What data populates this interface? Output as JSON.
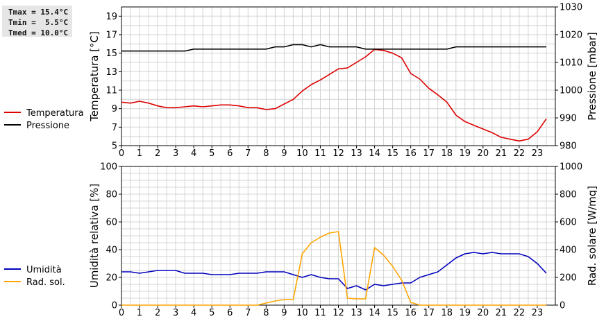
{
  "stats": {
    "tmax": "Tmax = 15.4°C",
    "tmin": "Tmin =  5.5°C",
    "tmed": "Tmed = 10.0°C"
  },
  "chart_data": [
    {
      "type": "line",
      "x_ticks": [
        "0",
        "1",
        "2",
        "3",
        "4",
        "5",
        "6",
        "7",
        "8",
        "9",
        "10",
        "11",
        "12",
        "13",
        "14",
        "15",
        "16",
        "17",
        "18",
        "19",
        "20",
        "21",
        "22",
        "23"
      ],
      "xlim": [
        0,
        24
      ],
      "ylabel_left": "Temperatura [°C]",
      "ylim_left": [
        5,
        20
      ],
      "yticks_left": [
        "5",
        "7",
        "9",
        "11",
        "13",
        "15",
        "17",
        "19"
      ],
      "ylabel_right": "Pressione [mbar]",
      "ylim_right": [
        980,
        1030
      ],
      "yticks_right": [
        "980",
        "990",
        "1000",
        "1010",
        "1020",
        "1030"
      ],
      "grid": true,
      "legend_position": "left",
      "series": [
        {
          "name": "Temperatura",
          "axis": "left",
          "color": "#dd0000",
          "x": [
            0,
            0.5,
            1,
            1.5,
            2,
            2.5,
            3,
            3.5,
            4,
            4.5,
            5,
            5.5,
            6,
            6.5,
            7,
            7.5,
            8,
            8.5,
            9,
            9.5,
            10,
            10.5,
            11,
            11.5,
            12,
            12.5,
            13,
            13.5,
            14,
            14.5,
            15,
            15.5,
            16,
            16.5,
            17,
            17.5,
            18,
            18.5,
            19,
            19.5,
            20,
            20.5,
            21,
            21.5,
            22,
            22.5,
            23,
            23.5
          ],
          "y": [
            9.7,
            9.6,
            9.8,
            9.6,
            9.3,
            9.1,
            9.1,
            9.2,
            9.3,
            9.2,
            9.3,
            9.4,
            9.4,
            9.3,
            9.1,
            9.1,
            8.9,
            9.0,
            9.5,
            10.0,
            10.9,
            11.6,
            12.1,
            12.7,
            13.3,
            13.4,
            14.0,
            14.6,
            15.4,
            15.3,
            15.0,
            14.5,
            12.8,
            12.2,
            11.2,
            10.5,
            9.7,
            8.3,
            7.6,
            7.2,
            6.8,
            6.4,
            5.9,
            5.7,
            5.5,
            5.7,
            6.5,
            7.9
          ]
        },
        {
          "name": "Pressione",
          "axis": "right",
          "color": "#000000",
          "x": [
            0,
            0.5,
            1,
            1.5,
            2,
            2.5,
            3,
            3.5,
            4,
            4.5,
            5,
            5.5,
            6,
            6.5,
            7,
            7.5,
            8,
            8.5,
            9,
            9.5,
            10,
            10.5,
            11,
            11.5,
            12,
            12.5,
            13,
            13.5,
            14,
            14.5,
            15,
            15.5,
            16,
            16.5,
            17,
            17.5,
            18,
            18.5,
            19,
            19.5,
            20,
            20.5,
            21,
            21.5,
            22,
            22.5,
            23,
            23.5
          ],
          "y": [
            1014.1,
            1014.1,
            1014.1,
            1014.1,
            1014.1,
            1014.1,
            1014.1,
            1014.1,
            1014.8,
            1014.8,
            1014.8,
            1014.8,
            1014.8,
            1014.8,
            1014.8,
            1014.8,
            1014.8,
            1015.6,
            1015.6,
            1016.4,
            1016.4,
            1015.6,
            1016.4,
            1015.6,
            1015.6,
            1015.6,
            1015.6,
            1014.8,
            1014.8,
            1014.8,
            1014.8,
            1014.8,
            1014.8,
            1014.8,
            1014.8,
            1014.8,
            1014.8,
            1015.6,
            1015.6,
            1015.6,
            1015.6,
            1015.6,
            1015.6,
            1015.6,
            1015.6,
            1015.6,
            1015.6,
            1015.6
          ]
        }
      ]
    },
    {
      "type": "line",
      "x_ticks": [
        "0",
        "1",
        "2",
        "3",
        "4",
        "5",
        "6",
        "7",
        "8",
        "9",
        "10",
        "11",
        "12",
        "13",
        "14",
        "15",
        "16",
        "17",
        "18",
        "19",
        "20",
        "21",
        "22",
        "23"
      ],
      "xlim": [
        0,
        24
      ],
      "ylabel_left": "Umidità relativa [%]",
      "ylim_left": [
        0,
        100
      ],
      "yticks_left": [
        "0",
        "20",
        "40",
        "60",
        "80",
        "100"
      ],
      "ylabel_right": "Rad. solare [W/mq]",
      "ylim_right": [
        0,
        1000
      ],
      "yticks_right": [
        "0",
        "200",
        "400",
        "600",
        "800",
        "1000"
      ],
      "grid": true,
      "legend_position": "left",
      "series": [
        {
          "name": "Umidità",
          "axis": "left",
          "color": "#0000bb",
          "x": [
            0,
            0.5,
            1,
            1.5,
            2,
            2.5,
            3,
            3.5,
            4,
            4.5,
            5,
            5.5,
            6,
            6.5,
            7,
            7.5,
            8,
            8.5,
            9,
            9.5,
            10,
            10.5,
            11,
            11.5,
            12,
            12.5,
            13,
            13.5,
            14,
            14.5,
            15,
            15.5,
            16,
            16.5,
            17,
            17.5,
            18,
            18.5,
            19,
            19.5,
            20,
            20.5,
            21,
            21.5,
            22,
            22.5,
            23,
            23.5
          ],
          "y": [
            24,
            24,
            23,
            24,
            25,
            25,
            25,
            23,
            23,
            23,
            22,
            22,
            22,
            23,
            23,
            23,
            24,
            24,
            24,
            22,
            20,
            22,
            20,
            19,
            19,
            12,
            14,
            11,
            15,
            14,
            15,
            16,
            16,
            20,
            22,
            24,
            29,
            34,
            37,
            38,
            37,
            38,
            37,
            37,
            37,
            35,
            30,
            23
          ]
        },
        {
          "name": "Rad. sol.",
          "axis": "right",
          "color": "#ffa500",
          "x": [
            0,
            0.5,
            1,
            1.5,
            2,
            2.5,
            3,
            3.5,
            4,
            4.5,
            5,
            5.5,
            6,
            6.5,
            7,
            7.5,
            8,
            8.5,
            9,
            9.5,
            10,
            10.5,
            11,
            11.5,
            12,
            12.5,
            13,
            13.5,
            14,
            14.5,
            15,
            15.5,
            16,
            16.5,
            17,
            17.5,
            18,
            18.5,
            19,
            19.5,
            20,
            20.5,
            21,
            21.5,
            22,
            22.5,
            23,
            23.5
          ],
          "y": [
            0,
            0,
            0,
            0,
            0,
            0,
            0,
            0,
            0,
            0,
            0,
            0,
            0,
            0,
            0,
            0,
            15,
            30,
            40,
            40,
            370,
            450,
            490,
            520,
            530,
            50,
            45,
            45,
            415,
            360,
            280,
            180,
            20,
            0,
            0,
            0,
            0,
            0,
            0,
            0,
            0,
            0,
            0,
            0,
            0,
            0,
            0,
            0
          ]
        }
      ]
    }
  ]
}
